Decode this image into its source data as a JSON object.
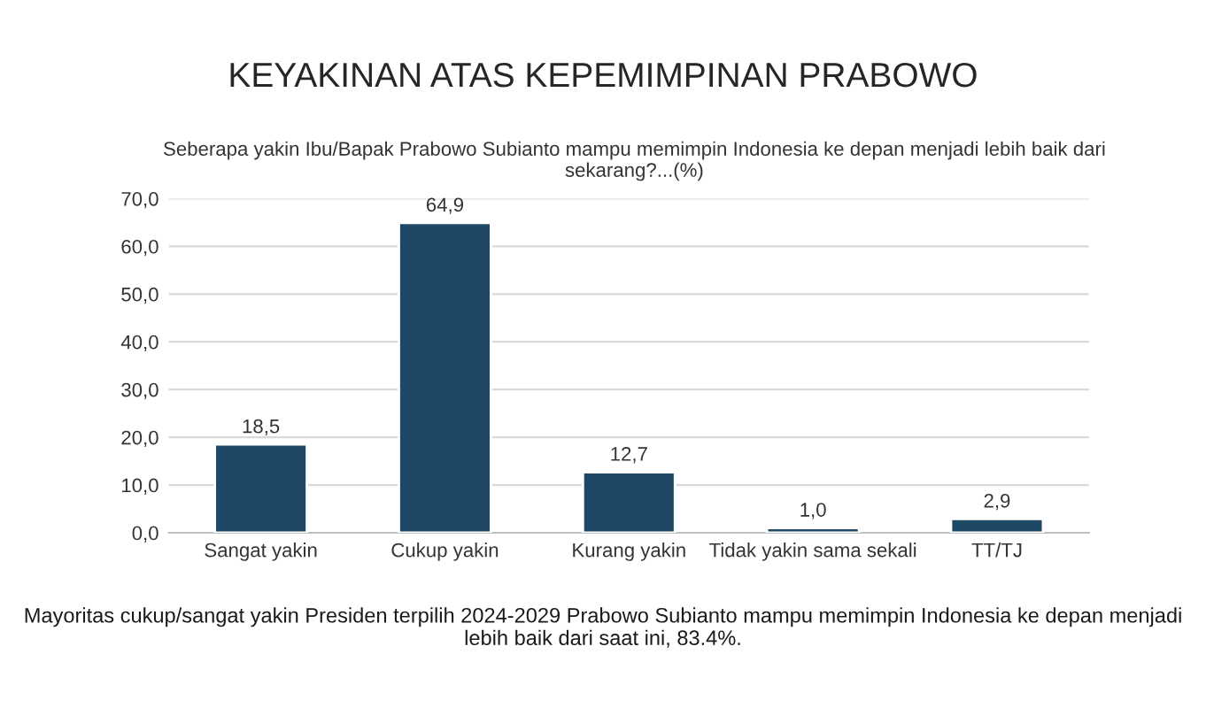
{
  "chart_data": {
    "type": "bar",
    "title": "KEYAKINAN ATAS KEPEMIMPINAN PRABOWO",
    "subtitle": "Seberapa yakin Ibu/Bapak Prabowo Subianto mampu memimpin Indonesia ke depan menjadi lebih baik dari sekarang?...(%)",
    "categories": [
      "Sangat yakin",
      "Cukup yakin",
      "Kurang yakin",
      "Tidak yakin sama sekali",
      "TT/TJ"
    ],
    "values": [
      18.5,
      64.9,
      12.7,
      1.0,
      2.9
    ],
    "value_labels": [
      "18,5",
      "64,9",
      "12,7",
      "1,0",
      "2,9"
    ],
    "color": "#1f4866",
    "ylim": [
      0,
      70
    ],
    "yticks": [
      {
        "value": 0,
        "label": "0,0"
      },
      {
        "value": 10,
        "label": "10,0"
      },
      {
        "value": 20,
        "label": "20,0"
      },
      {
        "value": 30,
        "label": "30,0"
      },
      {
        "value": 40,
        "label": "40,0"
      },
      {
        "value": 50,
        "label": "50,0"
      },
      {
        "value": 60,
        "label": "60,0"
      },
      {
        "value": 70,
        "label": "70,0"
      }
    ],
    "grid": "y",
    "annotations": [
      "Mayoritas cukup/sangat yakin Presiden terpilih 2024-2029 Prabowo Subianto mampu memimpin Indonesia ke depan menjadi lebih baik dari saat ini, 83.4%."
    ]
  }
}
